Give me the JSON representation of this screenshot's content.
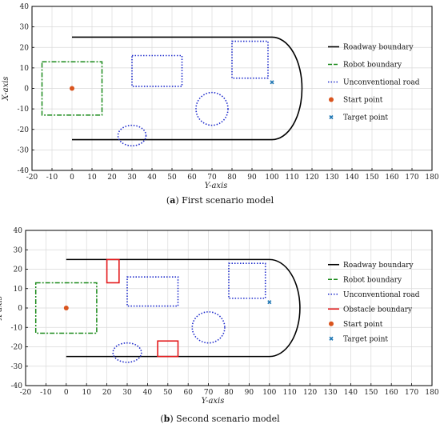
{
  "chart_data": [
    {
      "type": "line",
      "caption_letter": "a",
      "caption_text": "First scenario model",
      "xlabel": "Y-axis",
      "ylabel": "X-axis",
      "xlim": [
        -20,
        180
      ],
      "ylim": [
        -40,
        40
      ],
      "xticks": [
        -20,
        -10,
        0,
        10,
        20,
        30,
        40,
        50,
        60,
        70,
        80,
        90,
        100,
        110,
        120,
        130,
        140,
        150,
        160,
        170,
        180
      ],
      "yticks": [
        -40,
        -30,
        -20,
        -10,
        0,
        10,
        20,
        30,
        40
      ],
      "grid": true,
      "legend_position": "right",
      "colors": {
        "roadway": "#000000",
        "robot": "#1a8a1a",
        "unconventional": "#1f2ccc",
        "start": "#d9541e",
        "target": "#1f77b4"
      },
      "legend": [
        "Roadway boundary",
        "Robot boundary",
        "Unconventional road",
        "Start point",
        "Target point"
      ],
      "roadway_boundary": {
        "top_y": 25,
        "bottom_y": -25,
        "x_start": 0,
        "x_end": 100,
        "arc_max_x": 115
      },
      "robot_boundary": {
        "x_range": [
          -15,
          15
        ],
        "y_range": [
          -13,
          13
        ]
      },
      "unconventional_road": {
        "rectangles": [
          {
            "x_range": [
              30,
              55
            ],
            "y_range": [
              1,
              16
            ]
          },
          {
            "x_range": [
              80,
              98
            ],
            "y_range": [
              5,
              23
            ]
          }
        ],
        "ellipses": [
          {
            "cx": 30,
            "cy": -23,
            "rx": 7,
            "ry": 5
          },
          {
            "cx": 70,
            "cy": -10,
            "rx": 8,
            "ry": 8
          }
        ]
      },
      "obstacle_boundary": [],
      "start_point": {
        "x": 0,
        "y": 0
      },
      "target_point": {
        "x": 100,
        "y": 3
      }
    },
    {
      "type": "line",
      "caption_letter": "b",
      "caption_text": "Second scenario model",
      "xlabel": "Y-axis",
      "ylabel": "X-axis",
      "xlim": [
        -20,
        180
      ],
      "ylim": [
        -40,
        40
      ],
      "xticks": [
        -20,
        -10,
        0,
        10,
        20,
        30,
        40,
        50,
        60,
        70,
        80,
        90,
        100,
        110,
        120,
        130,
        140,
        150,
        160,
        170,
        180
      ],
      "yticks": [
        -40,
        -30,
        -20,
        -10,
        0,
        10,
        20,
        30,
        40
      ],
      "grid": true,
      "legend_position": "right",
      "colors": {
        "roadway": "#000000",
        "robot": "#1a8a1a",
        "unconventional": "#1f2ccc",
        "obstacle": "#e31a1c",
        "start": "#d9541e",
        "target": "#1f77b4"
      },
      "legend": [
        "Roadway boundary",
        "Robot boundary",
        "Unconventional road",
        "Obstacle boundary",
        "Start point",
        "Target point"
      ],
      "roadway_boundary": {
        "top_y": 25,
        "bottom_y": -25,
        "x_start": 0,
        "x_end": 100,
        "arc_max_x": 115
      },
      "robot_boundary": {
        "x_range": [
          -15,
          15
        ],
        "y_range": [
          -13,
          13
        ]
      },
      "unconventional_road": {
        "rectangles": [
          {
            "x_range": [
              30,
              55
            ],
            "y_range": [
              1,
              16
            ]
          },
          {
            "x_range": [
              80,
              98
            ],
            "y_range": [
              5,
              23
            ]
          }
        ],
        "ellipses": [
          {
            "cx": 30,
            "cy": -23,
            "rx": 7,
            "ry": 5
          },
          {
            "cx": 70,
            "cy": -10,
            "rx": 8,
            "ry": 8
          }
        ]
      },
      "obstacle_boundary": [
        {
          "x_range": [
            20,
            26
          ],
          "y_range": [
            13,
            25
          ]
        },
        {
          "x_range": [
            45,
            55
          ],
          "y_range": [
            -25,
            -17
          ]
        }
      ],
      "start_point": {
        "x": 0,
        "y": 0
      },
      "target_point": {
        "x": 100,
        "y": 3
      }
    }
  ]
}
